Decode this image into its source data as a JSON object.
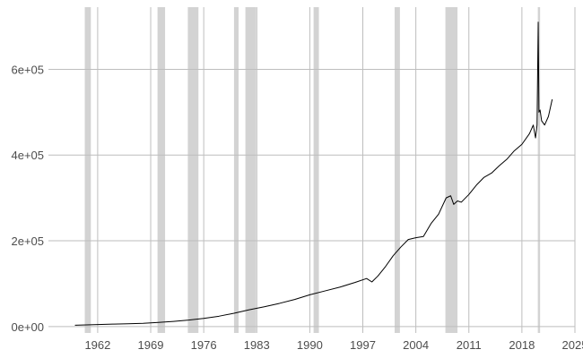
{
  "chart_data": {
    "type": "line",
    "title": "",
    "xlabel": "",
    "ylabel": "",
    "xlim": [
      1955.5,
      2025
    ],
    "ylim": [
      -15000,
      745000
    ],
    "grid": true,
    "legend": "none",
    "x_ticks": [
      {
        "value": 1962,
        "label": "1962"
      },
      {
        "value": 1969,
        "label": "1969"
      },
      {
        "value": 1976,
        "label": "1976"
      },
      {
        "value": 1983,
        "label": "1983"
      },
      {
        "value": 1990,
        "label": "1990"
      },
      {
        "value": 1997,
        "label": "1997"
      },
      {
        "value": 2004,
        "label": "2004"
      },
      {
        "value": 2011,
        "label": "2011"
      },
      {
        "value": 2018,
        "label": "2018"
      },
      {
        "value": 2025,
        "label": "2025"
      }
    ],
    "y_ticks": [
      {
        "value": 0,
        "label": "0e+00"
      },
      {
        "value": 200000,
        "label": "2e+05"
      },
      {
        "value": 400000,
        "label": "4e+05"
      },
      {
        "value": 600000,
        "label": "6e+05"
      }
    ],
    "shaded_periods": [
      [
        1960.3,
        1961.1
      ],
      [
        1969.9,
        1970.9
      ],
      [
        1973.9,
        1975.3
      ],
      [
        1980.0,
        1980.6
      ],
      [
        1981.5,
        1982.9
      ],
      [
        1990.5,
        1991.2
      ],
      [
        2001.2,
        2001.9
      ],
      [
        2007.9,
        2009.5
      ],
      [
        2020.1,
        2020.4
      ]
    ],
    "series": [
      {
        "color": "#000000",
        "x": [
          1959.0,
          1960,
          1962,
          1964,
          1966,
          1968,
          1970,
          1972,
          1974,
          1976,
          1978,
          1980,
          1982,
          1984,
          1986,
          1988,
          1990,
          1992,
          1994,
          1996,
          1997.5,
          1998.2,
          1999,
          2000,
          2001,
          2002,
          2003,
          2004,
          2005,
          2006,
          2007,
          2008,
          2008.6,
          2009.0,
          2009.5,
          2010,
          2011,
          2012,
          2013,
          2014,
          2015,
          2016,
          2017,
          2018,
          2019,
          2019.5,
          2019.8,
          2020.0,
          2020.15,
          2020.25,
          2020.4,
          2020.6,
          2021,
          2021.5,
          2022.0
        ],
        "y": [
          3000,
          3500,
          4500,
          5500,
          6500,
          7500,
          9500,
          12000,
          15000,
          19000,
          24000,
          31000,
          39000,
          46000,
          54000,
          63000,
          74000,
          83000,
          92000,
          103000,
          112000,
          104000,
          118000,
          140000,
          165000,
          185000,
          203000,
          207000,
          210000,
          240000,
          262000,
          300000,
          305000,
          285000,
          293000,
          290000,
          308000,
          330000,
          348000,
          358000,
          375000,
          390000,
          410000,
          425000,
          450000,
          470000,
          440000,
          470000,
          710000,
          500000,
          505000,
          480000,
          470000,
          490000,
          530000
        ]
      }
    ]
  }
}
